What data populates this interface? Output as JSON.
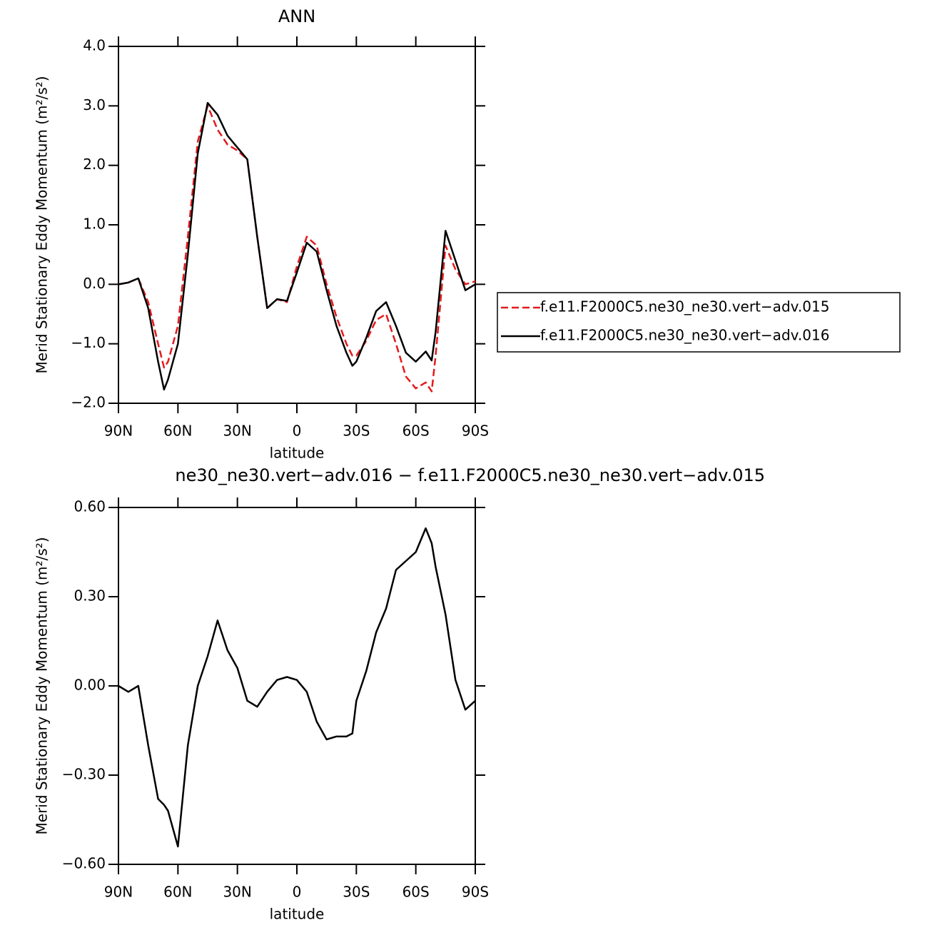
{
  "chart_data": [
    {
      "type": "line",
      "title": "ANN",
      "xlabel": "latitude",
      "ylabel": "Merid Stationary Eddy Momentum (m²/s²)",
      "x": [
        90,
        85,
        80,
        75,
        70,
        67,
        65,
        60,
        55,
        50,
        45,
        40,
        35,
        30,
        25,
        20,
        15,
        10,
        5,
        0,
        -5,
        -10,
        -15,
        -20,
        -25,
        -28,
        -30,
        -35,
        -40,
        -45,
        -50,
        -55,
        -60,
        -65,
        -68,
        -70,
        -75,
        -80,
        -85,
        -90
      ],
      "series": [
        {
          "name": "f.e11.F2000C5.ne30_ne30.vert−adv.015",
          "color": "#e41a1c",
          "line_style": "dashed",
          "values": [
            0,
            0.03,
            0.1,
            -0.3,
            -1.0,
            -1.4,
            -1.3,
            -0.7,
            0.8,
            2.4,
            3.0,
            2.6,
            2.35,
            2.25,
            2.1,
            0.8,
            -0.4,
            -0.25,
            -0.3,
            0.3,
            0.8,
            0.65,
            0.0,
            -0.55,
            -1.0,
            -1.2,
            -1.2,
            -0.95,
            -0.6,
            -0.5,
            -1.0,
            -1.55,
            -1.75,
            -1.65,
            -1.8,
            -1.2,
            0.65,
            0.25,
            0.0,
            0.05
          ]
        },
        {
          "name": "f.e11.F2000C5.ne30_ne30.vert−adv.016",
          "color": "#000000",
          "line_style": "solid",
          "values": [
            0,
            0.03,
            0.1,
            -0.4,
            -1.3,
            -1.77,
            -1.6,
            -1.0,
            0.5,
            2.2,
            3.05,
            2.85,
            2.5,
            2.3,
            2.1,
            0.8,
            -0.4,
            -0.25,
            -0.28,
            0.2,
            0.7,
            0.55,
            -0.1,
            -0.7,
            -1.15,
            -1.37,
            -1.3,
            -0.9,
            -0.45,
            -0.3,
            -0.7,
            -1.15,
            -1.3,
            -1.13,
            -1.28,
            -0.8,
            0.9,
            0.4,
            -0.1,
            0.0
          ]
        }
      ],
      "xlim": [
        90,
        -90
      ],
      "xticks": [
        {
          "value": 90,
          "label": "90N"
        },
        {
          "value": 60,
          "label": "60N"
        },
        {
          "value": 30,
          "label": "30N"
        },
        0,
        {
          "value": -30,
          "label": "30S"
        },
        {
          "value": -60,
          "label": "60S"
        },
        {
          "value": -90,
          "label": "90S"
        }
      ],
      "ylim": [
        -2,
        4
      ],
      "yticks": [
        {
          "value": -2,
          "label": "−2.0"
        },
        {
          "value": -1,
          "label": "−1.0"
        },
        {
          "value": 0,
          "label": "0.0"
        },
        {
          "value": 1,
          "label": "1.0"
        },
        {
          "value": 2,
          "label": "2.0"
        },
        {
          "value": 3,
          "label": "3.0"
        },
        {
          "value": 4,
          "label": "4.0"
        }
      ],
      "legend": "right"
    },
    {
      "type": "line",
      "title": "ne30_ne30.vert−adv.016 − f.e11.F2000C5.ne30_ne30.vert−adv.015",
      "xlabel": "latitude",
      "ylabel": "Merid Stationary Eddy Momentum (m²/s²)",
      "x": [
        90,
        85,
        80,
        75,
        70,
        67,
        65,
        60,
        55,
        50,
        45,
        40,
        35,
        30,
        25,
        20,
        15,
        10,
        5,
        0,
        -5,
        -10,
        -15,
        -20,
        -25,
        -28,
        -30,
        -35,
        -40,
        -45,
        -50,
        -55,
        -60,
        -65,
        -68,
        -70,
        -75,
        -80,
        -85,
        -90
      ],
      "series": [
        {
          "color": "#000000",
          "line_style": "solid",
          "values": [
            0,
            -0.02,
            0,
            -0.2,
            -0.38,
            -0.4,
            -0.42,
            -0.54,
            -0.2,
            0,
            0.1,
            0.22,
            0.12,
            0.06,
            -0.05,
            -0.07,
            -0.02,
            0.02,
            0.03,
            0.02,
            -0.02,
            -0.12,
            -0.18,
            -0.17,
            -0.17,
            -0.16,
            -0.05,
            0.05,
            0.18,
            0.26,
            0.39,
            0.42,
            0.45,
            0.53,
            0.48,
            0.4,
            0.24,
            0.02,
            -0.08,
            -0.05
          ]
        }
      ],
      "xlim": [
        90,
        -90
      ],
      "xticks": [
        {
          "value": 90,
          "label": "90N"
        },
        {
          "value": 60,
          "label": "60N"
        },
        {
          "value": 30,
          "label": "30N"
        },
        0,
        {
          "value": -30,
          "label": "30S"
        },
        {
          "value": -60,
          "label": "60S"
        },
        {
          "value": -90,
          "label": "90S"
        }
      ],
      "ylim": [
        -0.6,
        0.6
      ],
      "yticks": [
        {
          "value": -0.6,
          "label": "−0.60"
        },
        {
          "value": -0.3,
          "label": "−0.30"
        },
        {
          "value": 0,
          "label": "0.00"
        },
        {
          "value": 0.3,
          "label": "0.30"
        },
        {
          "value": 0.6,
          "label": "0.60"
        }
      ]
    }
  ]
}
